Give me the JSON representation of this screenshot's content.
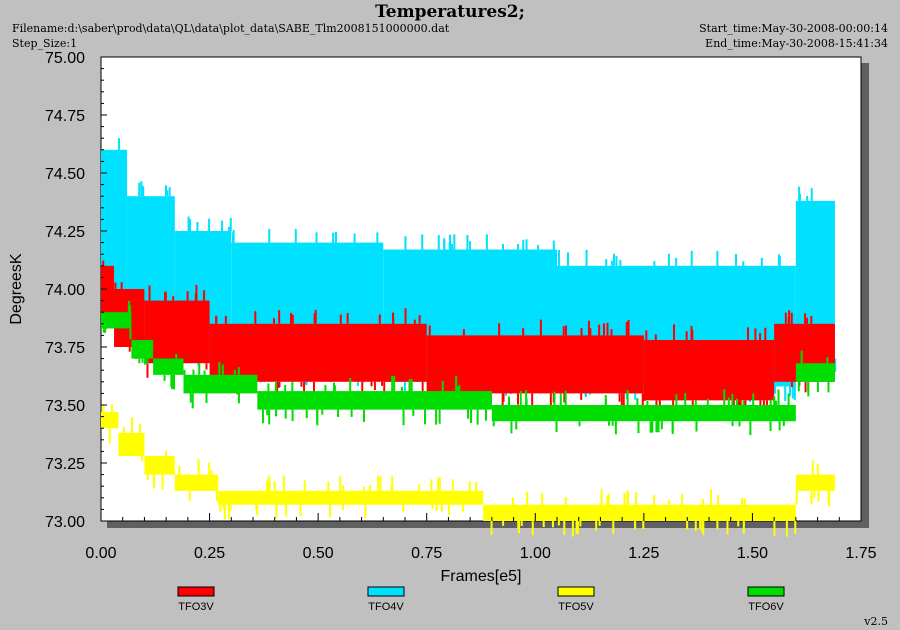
{
  "header": {
    "title": "Temperatures2;",
    "filename": "Filename:d:\\saber\\prod\\data\\QL\\data\\plot_data\\SABE_Tlm2008151000000.dat",
    "step_size": "Step_Size:1",
    "start_time": "Start_time:May-30-2008-00:00:14",
    "end_time": "End_time:May-30-2008-15:41:34",
    "version": "v2.5"
  },
  "colors": {
    "background": "#c0c0c0",
    "plot_area": "#ffffff",
    "TFO3V": "#ff0000",
    "TFO4V": "#00e0ff",
    "TFO5V": "#ffff00",
    "TFO6V": "#00dd00"
  },
  "chart_data": {
    "type": "line",
    "title": "Temperatures2;",
    "xlabel": "Frames[e5]",
    "ylabel": "DegreesK",
    "xlim": [
      0.0,
      1.75
    ],
    "ylim": [
      73.0,
      75.0
    ],
    "x_ticks": [
      "0.00",
      "0.25",
      "0.50",
      "0.75",
      "1.00",
      "1.25",
      "1.50",
      "1.75"
    ],
    "y_ticks": [
      "73.00",
      "73.25",
      "73.50",
      "73.75",
      "74.00",
      "74.25",
      "74.50",
      "74.75",
      "75.00"
    ],
    "legend_position": "bottom",
    "series": [
      {
        "name": "TFO3V",
        "color": "#ff0000",
        "bands": [
          {
            "x": [
              0.0,
              0.03
            ],
            "ylow": 73.85,
            "yhigh": 74.1
          },
          {
            "x": [
              0.03,
              0.1
            ],
            "ylow": 73.75,
            "yhigh": 74.0
          },
          {
            "x": [
              0.1,
              0.25
            ],
            "ylow": 73.68,
            "yhigh": 73.95
          },
          {
            "x": [
              0.25,
              0.75
            ],
            "ylow": 73.6,
            "yhigh": 73.85
          },
          {
            "x": [
              0.75,
              1.25
            ],
            "ylow": 73.55,
            "yhigh": 73.8
          },
          {
            "x": [
              1.25,
              1.55
            ],
            "ylow": 73.52,
            "yhigh": 73.78
          },
          {
            "x": [
              1.55,
              1.69
            ],
            "ylow": 73.6,
            "yhigh": 73.85
          }
        ]
      },
      {
        "name": "TFO4V",
        "color": "#00e0ff",
        "bands": [
          {
            "x": [
              0.0,
              0.06
            ],
            "ylow": 73.9,
            "yhigh": 74.6
          },
          {
            "x": [
              0.06,
              0.17
            ],
            "ylow": 73.75,
            "yhigh": 74.4
          },
          {
            "x": [
              0.17,
              0.3
            ],
            "ylow": 73.7,
            "yhigh": 74.25
          },
          {
            "x": [
              0.3,
              0.65
            ],
            "ylow": 73.65,
            "yhigh": 74.2
          },
          {
            "x": [
              0.65,
              1.05
            ],
            "ylow": 73.6,
            "yhigh": 74.17
          },
          {
            "x": [
              1.05,
              1.6
            ],
            "ylow": 73.58,
            "yhigh": 74.1
          },
          {
            "x": [
              1.6,
              1.69
            ],
            "ylow": 73.7,
            "yhigh": 74.38
          }
        ]
      },
      {
        "name": "TFO5V",
        "color": "#ffff00",
        "bands": [
          {
            "x": [
              0.0,
              0.04
            ],
            "ylow": 73.4,
            "yhigh": 73.47
          },
          {
            "x": [
              0.04,
              0.1
            ],
            "ylow": 73.28,
            "yhigh": 73.38
          },
          {
            "x": [
              0.1,
              0.17
            ],
            "ylow": 73.2,
            "yhigh": 73.28
          },
          {
            "x": [
              0.17,
              0.27
            ],
            "ylow": 73.13,
            "yhigh": 73.2
          },
          {
            "x": [
              0.27,
              0.88
            ],
            "ylow": 73.07,
            "yhigh": 73.13
          },
          {
            "x": [
              0.88,
              1.6
            ],
            "ylow": 73.0,
            "yhigh": 73.07
          },
          {
            "x": [
              1.6,
              1.69
            ],
            "ylow": 73.13,
            "yhigh": 73.2
          }
        ]
      },
      {
        "name": "TFO6V",
        "color": "#00dd00",
        "bands": [
          {
            "x": [
              0.0,
              0.07
            ],
            "ylow": 73.83,
            "yhigh": 73.9
          },
          {
            "x": [
              0.07,
              0.12
            ],
            "ylow": 73.7,
            "yhigh": 73.78
          },
          {
            "x": [
              0.12,
              0.19
            ],
            "ylow": 73.63,
            "yhigh": 73.7
          },
          {
            "x": [
              0.19,
              0.36
            ],
            "ylow": 73.55,
            "yhigh": 73.63
          },
          {
            "x": [
              0.36,
              0.9
            ],
            "ylow": 73.48,
            "yhigh": 73.56
          },
          {
            "x": [
              0.9,
              1.6
            ],
            "ylow": 73.43,
            "yhigh": 73.5
          },
          {
            "x": [
              1.6,
              1.69
            ],
            "ylow": 73.6,
            "yhigh": 73.68
          }
        ]
      }
    ]
  }
}
